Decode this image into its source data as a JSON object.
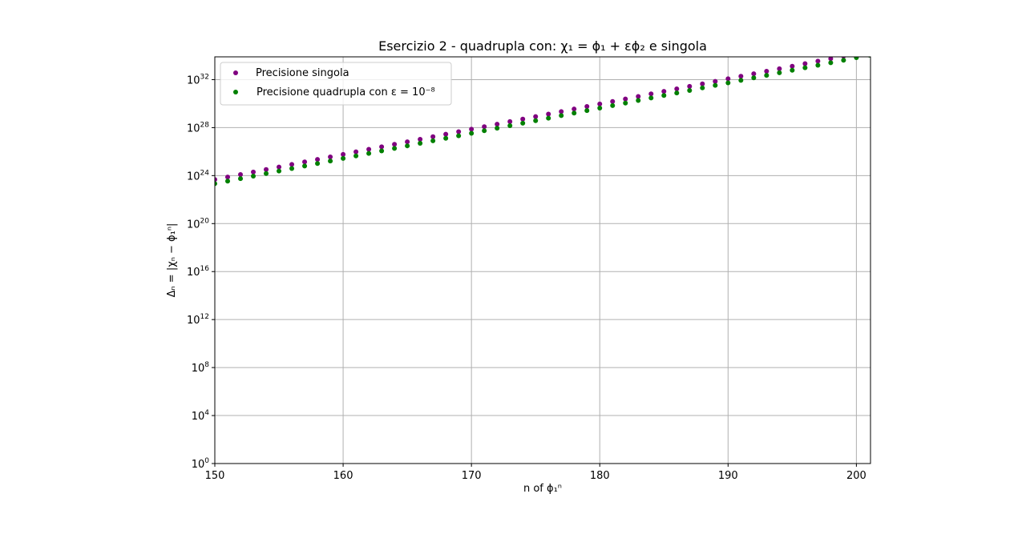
{
  "chart_data": {
    "type": "scatter",
    "title": "Esercizio 2 - quadrupla con: χ₁ = ϕ₁ + εϕ₂ e singola",
    "xlabel": "n of ϕ₁ⁿ",
    "ylabel": "Δₙ = |χₙ − ϕ₁ⁿ|",
    "xlim": [
      150,
      201.1
    ],
    "ylim_log10": [
      0,
      33.9
    ],
    "yscale": "log",
    "grid": true,
    "legend_position": "upper-left",
    "x_ticks": [
      150,
      160,
      170,
      180,
      190,
      200
    ],
    "x_tick_labels": [
      "150",
      "160",
      "170",
      "180",
      "190",
      "200"
    ],
    "y_ticks_log10": [
      0,
      4,
      8,
      12,
      16,
      20,
      24,
      28,
      32
    ],
    "y_tick_labels": [
      {
        "base": "10",
        "exp": "0"
      },
      {
        "base": "10",
        "exp": "4"
      },
      {
        "base": "10",
        "exp": "8"
      },
      {
        "base": "10",
        "exp": "12"
      },
      {
        "base": "10",
        "exp": "16"
      },
      {
        "base": "10",
        "exp": "20"
      },
      {
        "base": "10",
        "exp": "24"
      },
      {
        "base": "10",
        "exp": "28"
      },
      {
        "base": "10",
        "exp": "32"
      }
    ],
    "series": [
      {
        "name": "Precisione singola",
        "color": "#800080",
        "x_start": 150,
        "x_step": 1,
        "log10_values": [
          23.67,
          23.88,
          24.09,
          24.3,
          24.51,
          24.72,
          24.93,
          25.14,
          25.35,
          25.56,
          25.77,
          25.98,
          26.19,
          26.4,
          26.61,
          26.82,
          27.03,
          27.24,
          27.45,
          27.66,
          27.87,
          28.08,
          28.29,
          28.5,
          28.71,
          28.92,
          29.13,
          29.34,
          29.55,
          29.76,
          29.97,
          30.18,
          30.39,
          30.6,
          30.81,
          31.02,
          31.23,
          31.44,
          31.65,
          31.86,
          32.07,
          32.28,
          32.49,
          32.7,
          32.91,
          33.12,
          33.33,
          33.54,
          33.75,
          33.96,
          34.17
        ]
      },
      {
        "name": "Precisione quadrupla con ε = 10⁻⁸",
        "color": "#008000",
        "x_start": 150,
        "x_step": 1,
        "log10_values": [
          23.33,
          23.54,
          23.75,
          23.96,
          24.17,
          24.38,
          24.59,
          24.8,
          25.01,
          25.22,
          25.43,
          25.64,
          25.85,
          26.06,
          26.27,
          26.48,
          26.69,
          26.9,
          27.11,
          27.32,
          27.53,
          27.74,
          27.95,
          28.16,
          28.37,
          28.58,
          28.79,
          29.0,
          29.21,
          29.42,
          29.63,
          29.84,
          30.05,
          30.26,
          30.47,
          30.68,
          30.89,
          31.1,
          31.31,
          31.52,
          31.73,
          31.94,
          32.15,
          32.36,
          32.57,
          32.78,
          32.99,
          33.2,
          33.41,
          33.62,
          33.83,
          34.04
        ]
      }
    ]
  }
}
